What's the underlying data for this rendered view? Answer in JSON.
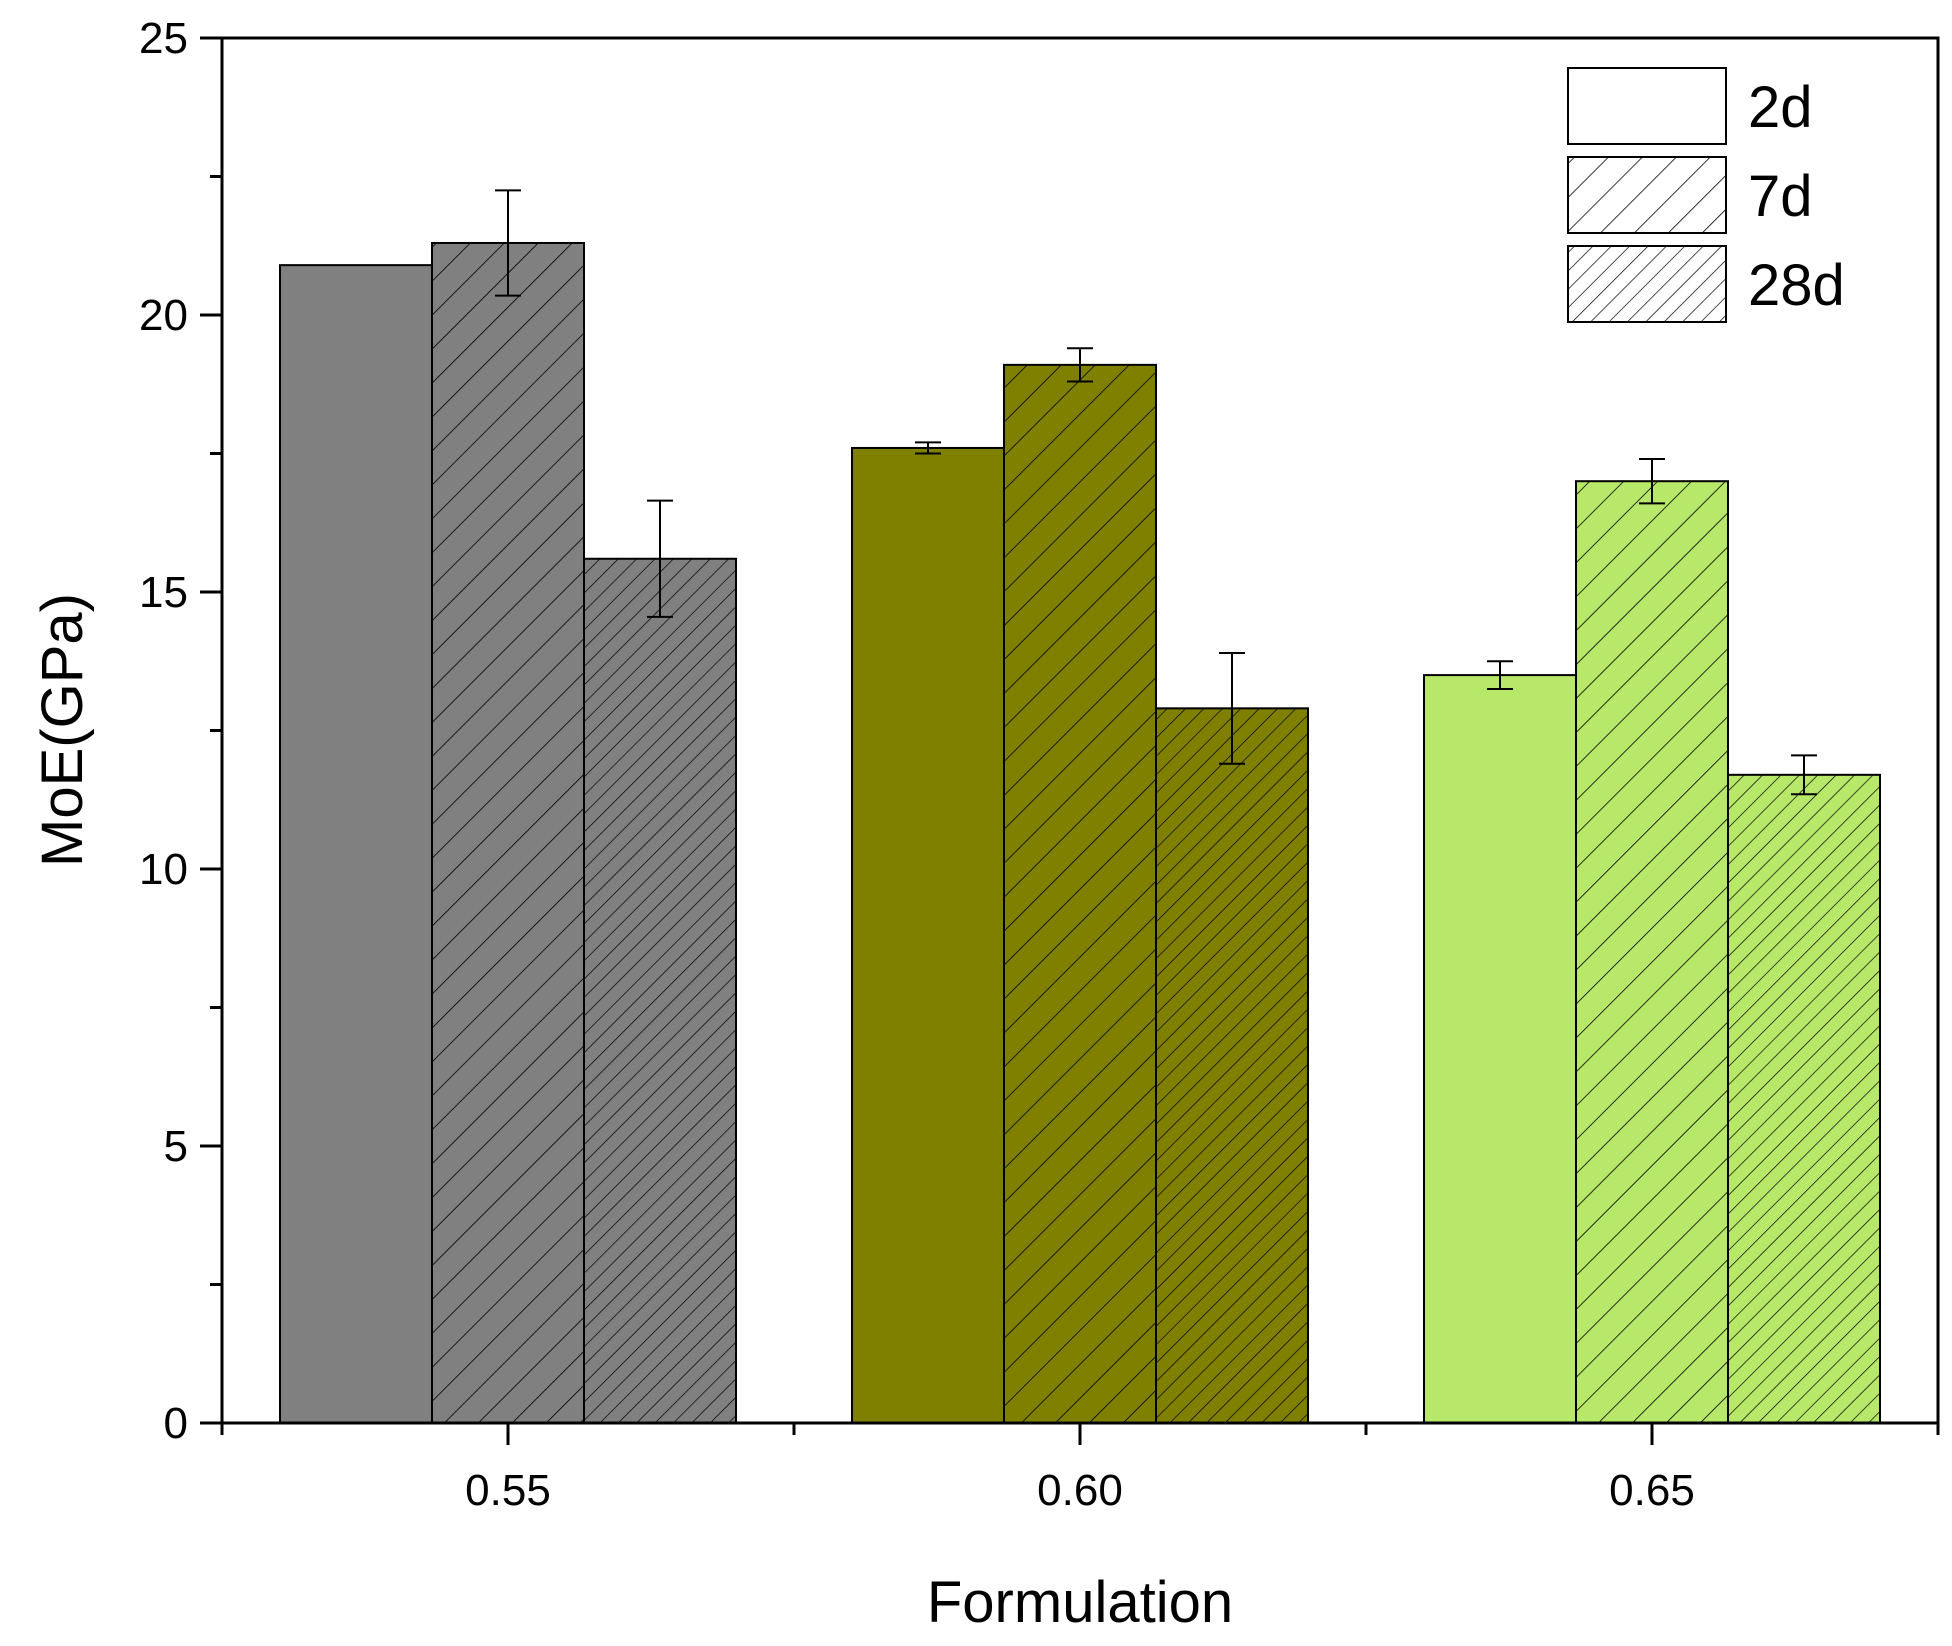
{
  "chart_data": {
    "type": "bar",
    "title": "",
    "xlabel": "Formulation",
    "ylabel": "MoE(GPa)",
    "categories": [
      "0.55",
      "0.60",
      "0.65"
    ],
    "ylim": [
      0,
      25
    ],
    "yticks": [
      "0",
      "5",
      "10",
      "15",
      "20",
      "25"
    ],
    "legend_position": "top-right",
    "category_colors": [
      "#808080",
      "#808000",
      "#b8e86a"
    ],
    "series": [
      {
        "name": "2d",
        "pattern": "solid",
        "values": [
          20.9,
          17.6,
          13.5
        ],
        "errors": [
          0.0,
          0.1,
          0.25
        ]
      },
      {
        "name": "7d",
        "pattern": "hatch",
        "values": [
          21.3,
          19.1,
          17.0
        ],
        "errors": [
          0.95,
          0.3,
          0.4
        ]
      },
      {
        "name": "28d",
        "pattern": "dense-hatch",
        "values": [
          15.6,
          12.9,
          11.7
        ],
        "errors": [
          1.05,
          1.0,
          0.35
        ]
      }
    ]
  }
}
